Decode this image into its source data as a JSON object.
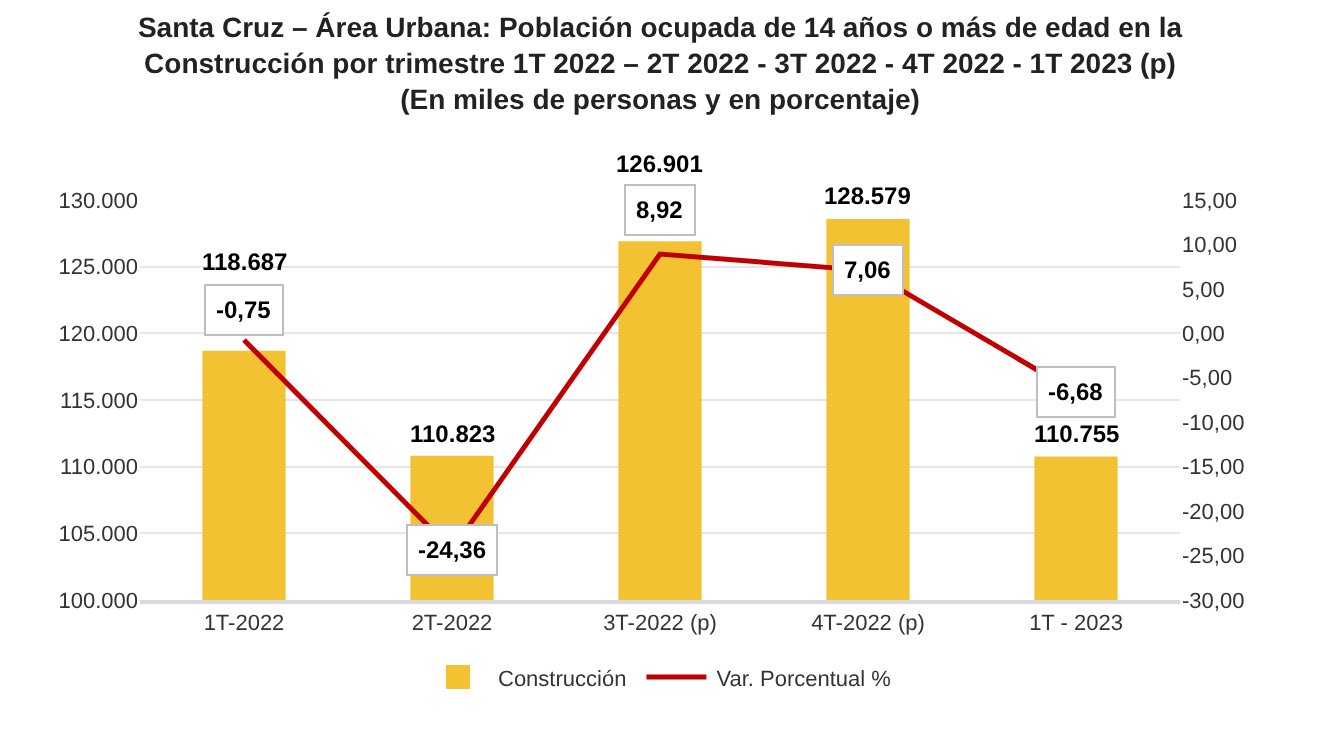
{
  "chart_data": {
    "type": "bar",
    "title": "Santa Cruz – Área Urbana: Población ocupada de 14 años o más de edad en la Construcción por trimestre 1T 2022 – 2T 2022 - 3T 2022 - 4T 2022 - 1T 2023 (p)",
    "subtitle": "(En miles de personas y en porcentaje)",
    "categories": [
      "1T-2022",
      "2T-2022",
      "3T-2022 (p)",
      "4T-2022 (p)",
      "1T - 2023"
    ],
    "series": [
      {
        "name": "Construcción",
        "color": "#f2c233",
        "values": [
          118687,
          110823,
          126901,
          128579,
          110755
        ],
        "value_labels": [
          "118.687",
          "110.823",
          "126.901",
          "128.579",
          "110.755"
        ]
      },
      {
        "name": "Var. Porcentual %",
        "type": "line",
        "axis": "y2",
        "color": "#c00000",
        "values": [
          -0.75,
          -24.36,
          8.92,
          7.06,
          -6.68
        ],
        "value_labels": [
          "-0,75",
          "-24,36",
          "8,92",
          "7,06",
          "-6,68"
        ]
      }
    ],
    "ylim": [
      100000,
      130000
    ],
    "yticks": [
      {
        "value": 100000,
        "label": "100.000"
      },
      {
        "value": 105000,
        "label": "105.000"
      },
      {
        "value": 110000,
        "label": "110.000"
      },
      {
        "value": 115000,
        "label": "115.000"
      },
      {
        "value": 120000,
        "label": "120.000"
      },
      {
        "value": 125000,
        "label": "125.000"
      },
      {
        "value": 130000,
        "label": "130.000"
      }
    ],
    "y2lim": [
      -30,
      15
    ],
    "y2ticks": [
      {
        "value": -30,
        "label": "-30,00"
      },
      {
        "value": -25,
        "label": "-25,00"
      },
      {
        "value": -20,
        "label": "-20,00"
      },
      {
        "value": -15,
        "label": "-15,00"
      },
      {
        "value": -10,
        "label": "-10,00"
      },
      {
        "value": -5,
        "label": "-5,00"
      },
      {
        "value": 0,
        "label": "0,00"
      },
      {
        "value": 5,
        "label": "5,00"
      },
      {
        "value": 10,
        "label": "10,00"
      },
      {
        "value": 15,
        "label": "15,00"
      }
    ],
    "grid": "y",
    "legend": "bottom",
    "line_style": "solid"
  }
}
